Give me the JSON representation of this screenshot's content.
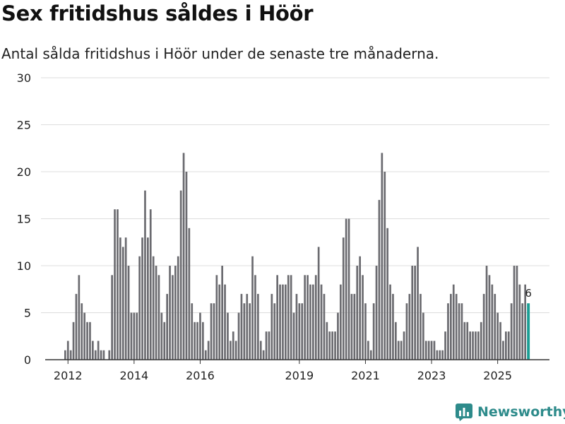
{
  "title": "Sex fritidshus såldes i Höör",
  "subtitle": "Antal sålda fritidshus i Höör under de senaste tre månaderna.",
  "brand": "Newsworthy",
  "colors": {
    "bar": "#6b6b70",
    "highlight": "#1a9e94",
    "grid": "#dddddd",
    "axis": "#333333",
    "brand": "#2e8b8b"
  },
  "chart_data": {
    "type": "bar",
    "title": "Sex fritidshus såldes i Höör",
    "xlabel": "",
    "ylabel": "",
    "ylim": [
      0,
      30
    ],
    "yticks": [
      0,
      5,
      10,
      15,
      20,
      25,
      30
    ],
    "xticks": [
      "2012",
      "2014",
      "2016",
      "2019",
      "2021",
      "2023",
      "2025"
    ],
    "xtick_positions": [
      1,
      25,
      49,
      85,
      109,
      133,
      157
    ],
    "highlight_label": "6",
    "values": [
      1,
      2,
      1,
      4,
      7,
      9,
      6,
      5,
      4,
      4,
      2,
      1,
      2,
      1,
      1,
      0,
      1,
      9,
      16,
      16,
      13,
      12,
      13,
      10,
      5,
      5,
      5,
      11,
      13,
      18,
      13,
      16,
      11,
      10,
      9,
      5,
      4,
      7,
      10,
      9,
      10,
      11,
      18,
      22,
      20,
      14,
      6,
      4,
      4,
      5,
      4,
      1,
      2,
      6,
      6,
      9,
      8,
      10,
      8,
      5,
      2,
      3,
      2,
      5,
      7,
      6,
      7,
      6,
      11,
      9,
      7,
      2,
      1,
      3,
      3,
      7,
      6,
      9,
      8,
      8,
      8,
      9,
      9,
      5,
      7,
      6,
      6,
      9,
      9,
      8,
      8,
      9,
      12,
      8,
      7,
      4,
      3,
      3,
      3,
      5,
      8,
      13,
      15,
      15,
      7,
      7,
      10,
      11,
      9,
      6,
      2,
      1,
      6,
      10,
      17,
      22,
      20,
      14,
      8,
      7,
      4,
      2,
      2,
      3,
      6,
      7,
      10,
      10,
      12,
      7,
      5,
      2,
      2,
      2,
      2,
      1,
      1,
      1,
      3,
      6,
      7,
      8,
      7,
      6,
      6,
      4,
      4,
      3,
      3,
      3,
      3,
      4,
      7,
      10,
      9,
      8,
      7,
      5,
      4,
      2,
      3,
      3,
      6,
      10,
      10,
      8,
      6,
      8,
      6
    ]
  }
}
